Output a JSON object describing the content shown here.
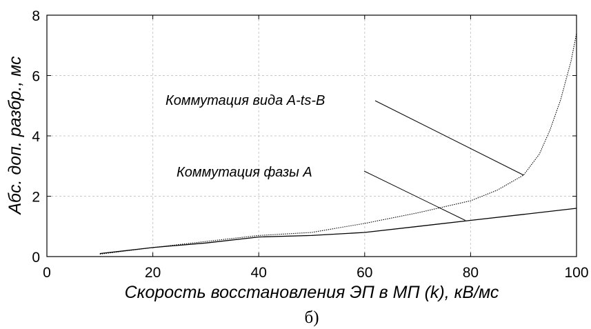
{
  "chart_data": {
    "type": "line",
    "xlabel": "Скорость восстановления ЭП в МП (k), кВ/мс",
    "ylabel": "Абс. доп. разбр., мс",
    "caption": "б)",
    "xlim": [
      0,
      100
    ],
    "ylim": [
      0,
      8
    ],
    "xticks": [
      0,
      20,
      40,
      60,
      80,
      100
    ],
    "yticks": [
      0,
      2,
      4,
      6,
      8
    ],
    "grid": true,
    "series": [
      {
        "name": "Коммутация фазы А",
        "style": "solid",
        "x": [
          10,
          20,
          30,
          40,
          50,
          60,
          70,
          80,
          90,
          100
        ],
        "y": [
          0.1,
          0.3,
          0.45,
          0.65,
          0.7,
          0.8,
          1.0,
          1.2,
          1.4,
          1.6
        ]
      },
      {
        "name": "Коммутация вида A-ts-B",
        "style": "dotted",
        "x": [
          10,
          20,
          30,
          40,
          50,
          55,
          60,
          70,
          80,
          85,
          90,
          93,
          95,
          97,
          99,
          100
        ],
        "y": [
          0.08,
          0.3,
          0.5,
          0.7,
          0.8,
          0.95,
          1.1,
          1.45,
          1.85,
          2.2,
          2.7,
          3.4,
          4.2,
          5.2,
          6.5,
          7.4
        ]
      }
    ],
    "annotations": [
      {
        "text": "Коммутация вида A-ts-B",
        "x": 90,
        "y": 2.7
      },
      {
        "text": "Коммутация фазы А",
        "x": 79,
        "y": 1.2
      }
    ]
  }
}
